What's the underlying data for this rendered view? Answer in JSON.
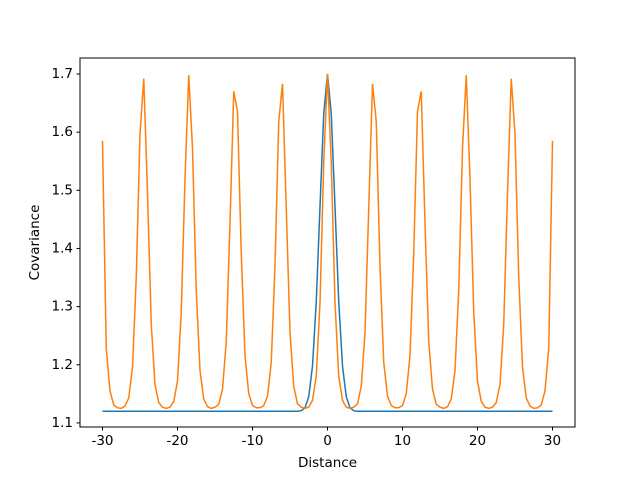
{
  "chart_data": {
    "type": "line",
    "x_label": "Distance",
    "y_label": "Covariance",
    "x": [
      -30,
      -29.5,
      -29,
      -28.5,
      -28,
      -27.5,
      -27,
      -26.5,
      -26,
      -25.5,
      -25,
      -24.5,
      -24,
      -23.5,
      -23,
      -22.5,
      -22,
      -21.5,
      -21,
      -20.5,
      -20,
      -19.5,
      -19,
      -18.5,
      -18,
      -17.5,
      -17,
      -16.5,
      -16,
      -15.5,
      -15,
      -14.5,
      -14,
      -13.5,
      -13,
      -12.5,
      -12,
      -11.5,
      -11,
      -10.5,
      -10,
      -9.5,
      -9,
      -8.5,
      -8,
      -7.5,
      -7,
      -6.5,
      -6,
      -5.5,
      -5,
      -4.5,
      -4,
      -3.5,
      -3,
      -2.5,
      -2,
      -1.5,
      -1,
      -0.5,
      0,
      0.5,
      1,
      1.5,
      2,
      2.5,
      3,
      3.5,
      4,
      4.5,
      5,
      5.5,
      6,
      6.5,
      7,
      7.5,
      8,
      8.5,
      9,
      9.5,
      10,
      10.5,
      11,
      11.5,
      12,
      12.5,
      13,
      13.5,
      14,
      14.5,
      15,
      15.5,
      16,
      16.5,
      17,
      17.5,
      18,
      18.5,
      19,
      19.5,
      20,
      20.5,
      21,
      21.5,
      22,
      22.5,
      23,
      23.5,
      24,
      24.5,
      25,
      25.5,
      26,
      26.5,
      27,
      27.5,
      28,
      28.5,
      29,
      29.5,
      30
    ],
    "series": [
      {
        "color": "#1f77b4",
        "values": [
          1.12,
          1.12,
          1.12,
          1.12,
          1.12,
          1.12,
          1.12,
          1.12,
          1.12,
          1.12,
          1.12,
          1.12,
          1.12,
          1.12,
          1.12,
          1.12,
          1.12,
          1.12,
          1.12,
          1.12,
          1.12,
          1.12,
          1.12,
          1.12,
          1.12,
          1.12,
          1.12,
          1.12,
          1.12,
          1.12,
          1.12,
          1.12,
          1.12,
          1.12,
          1.12,
          1.12,
          1.12,
          1.12,
          1.12,
          1.12,
          1.12,
          1.12,
          1.12,
          1.12,
          1.12,
          1.12,
          1.12,
          1.12,
          1.12,
          1.12,
          1.12,
          1.12,
          1.12,
          1.121,
          1.126,
          1.145,
          1.198,
          1.308,
          1.472,
          1.632,
          1.7,
          1.632,
          1.472,
          1.308,
          1.198,
          1.145,
          1.126,
          1.121,
          1.12,
          1.12,
          1.12,
          1.12,
          1.12,
          1.12,
          1.12,
          1.12,
          1.12,
          1.12,
          1.12,
          1.12,
          1.12,
          1.12,
          1.12,
          1.12,
          1.12,
          1.12,
          1.12,
          1.12,
          1.12,
          1.12,
          1.12,
          1.12,
          1.12,
          1.12,
          1.12,
          1.12,
          1.12,
          1.12,
          1.12,
          1.12,
          1.12,
          1.12,
          1.12,
          1.12,
          1.12,
          1.12,
          1.12,
          1.12,
          1.12,
          1.12,
          1.12,
          1.12,
          1.12,
          1.12,
          1.12,
          1.12,
          1.12,
          1.12,
          1.12,
          1.12,
          1.12
        ]
      },
      {
        "color": "#ff7f0e",
        "values": [
          1.585,
          1.228,
          1.155,
          1.131,
          1.126,
          1.125,
          1.129,
          1.143,
          1.196,
          1.35,
          1.597,
          1.692,
          1.495,
          1.27,
          1.166,
          1.135,
          1.127,
          1.125,
          1.127,
          1.137,
          1.172,
          1.29,
          1.52,
          1.698,
          1.572,
          1.328,
          1.19,
          1.141,
          1.128,
          1.125,
          1.127,
          1.132,
          1.158,
          1.24,
          1.444,
          1.67,
          1.636,
          1.392,
          1.216,
          1.15,
          1.13,
          1.126,
          1.126,
          1.13,
          1.146,
          1.204,
          1.37,
          1.618,
          1.683,
          1.47,
          1.255,
          1.163,
          1.133,
          1.127,
          1.125,
          1.127,
          1.139,
          1.18,
          1.307,
          1.548,
          1.7,
          1.548,
          1.307,
          1.18,
          1.139,
          1.127,
          1.125,
          1.127,
          1.133,
          1.163,
          1.255,
          1.47,
          1.683,
          1.618,
          1.37,
          1.204,
          1.146,
          1.13,
          1.126,
          1.126,
          1.13,
          1.15,
          1.216,
          1.392,
          1.636,
          1.67,
          1.444,
          1.24,
          1.158,
          1.132,
          1.127,
          1.125,
          1.128,
          1.141,
          1.19,
          1.328,
          1.572,
          1.698,
          1.52,
          1.29,
          1.172,
          1.137,
          1.127,
          1.125,
          1.127,
          1.135,
          1.166,
          1.27,
          1.495,
          1.692,
          1.597,
          1.35,
          1.196,
          1.143,
          1.129,
          1.125,
          1.126,
          1.131,
          1.155,
          1.228,
          1.585
        ]
      }
    ],
    "xlim": [
      -33,
      33
    ],
    "xticks": [
      -30,
      -20,
      -10,
      0,
      10,
      20,
      30
    ],
    "ylim": [
      1.093,
      1.7275
    ],
    "yticks": [
      1.1,
      1.2,
      1.3,
      1.4,
      1.5,
      1.6,
      1.7
    ],
    "grid": false
  }
}
